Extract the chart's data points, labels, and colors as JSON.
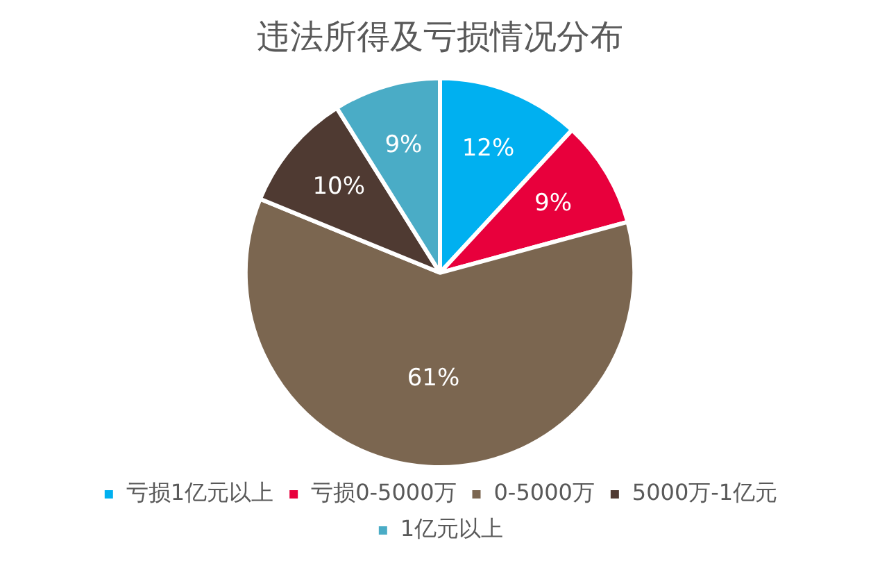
{
  "chart_data": {
    "type": "pie",
    "title": "违法所得及亏损情况分布",
    "categories": [
      "亏损1亿元以上",
      "亏损0-5000万",
      "0-5000万",
      "5000万-1亿元",
      "1亿元以上"
    ],
    "values": [
      12,
      9,
      61,
      10,
      9
    ],
    "colors": [
      "#00b0f0",
      "#e8003c",
      "#7b6650",
      "#4f3a32",
      "#4aacc6"
    ],
    "value_labels": [
      "12%",
      "9%",
      "61%",
      "10%",
      "9%"
    ],
    "legend": "bottom"
  }
}
